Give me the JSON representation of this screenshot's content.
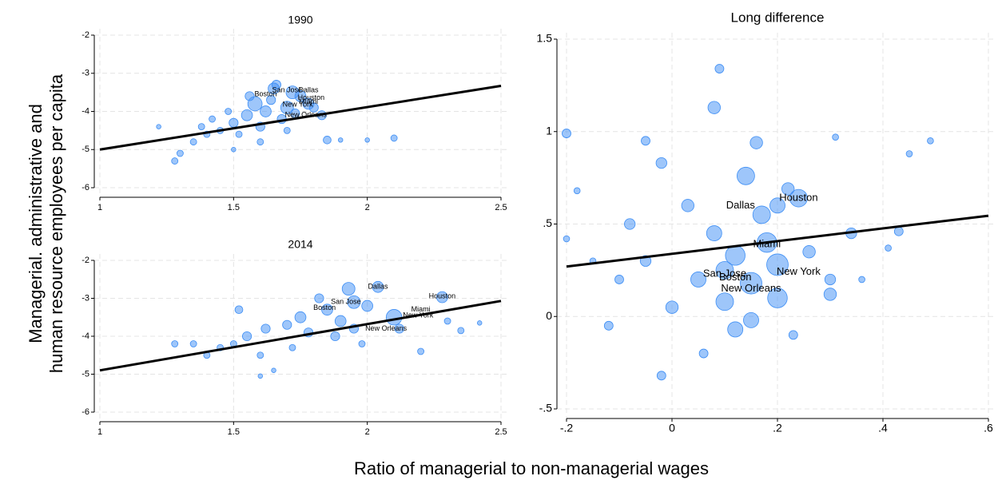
{
  "y_label": [
    "Managerial. administrative and",
    "human resource employees per capita"
  ],
  "x_label": "Ratio of managerial to non-managerial wages",
  "chart_data": [
    {
      "type": "scatter",
      "title": "1990",
      "xlim": [
        1,
        2.5
      ],
      "ylim": [
        -6,
        -2
      ],
      "xticks": [
        1,
        1.5,
        2,
        2.5
      ],
      "yticks": [
        -2,
        -3,
        -4,
        -5,
        -6
      ],
      "grid": true,
      "series": [
        {
          "color": "#3d8ef5",
          "x": [
            1.65,
            1.58,
            1.72,
            1.75,
            1.7,
            1.62,
            1.55,
            1.5,
            1.45,
            1.4,
            1.35,
            1.3,
            1.28,
            1.48,
            1.52,
            1.6,
            1.68,
            1.8,
            1.83,
            1.85,
            1.9,
            2.0,
            2.1,
            1.42,
            1.56,
            1.64,
            1.78,
            1.73,
            1.6,
            1.38,
            1.7,
            1.5,
            1.22,
            1.66
          ],
          "values": [
            -3.4,
            -3.8,
            -3.5,
            -3.6,
            -3.9,
            -4.0,
            -4.1,
            -4.3,
            -4.5,
            -4.6,
            -4.8,
            -5.1,
            -5.3,
            -4.0,
            -4.6,
            -4.4,
            -4.2,
            -3.9,
            -4.1,
            -4.75,
            -4.75,
            -4.75,
            -4.7,
            -4.2,
            -3.6,
            -3.7,
            -3.8,
            -4.05,
            -4.8,
            -4.4,
            -4.5,
            -5.0,
            -4.4,
            -3.3
          ],
          "sizes": [
            3,
            5,
            4,
            3,
            4,
            3,
            3,
            2,
            1,
            1,
            1,
            1,
            1,
            1,
            1,
            2,
            2,
            2,
            2,
            1.5,
            0.5,
            0.5,
            1,
            1,
            2,
            2,
            3,
            2,
            1,
            1,
            1,
            0.5,
            0.5,
            2
          ]
        }
      ],
      "fit": {
        "x": [
          1,
          2.5
        ],
        "values": [
          -5,
          -3.33
        ]
      },
      "annotations": [
        {
          "text": "Boston",
          "x": 1.62,
          "y": -3.55
        },
        {
          "text": "San Jose",
          "x": 1.7,
          "y": -3.45
        },
        {
          "text": "Dallas",
          "x": 1.78,
          "y": -3.45
        },
        {
          "text": "Houston",
          "x": 1.79,
          "y": -3.65
        },
        {
          "text": "Miami",
          "x": 1.78,
          "y": -3.75
        },
        {
          "text": "New York",
          "x": 1.74,
          "y": -3.82
        },
        {
          "text": "New Orleans",
          "x": 1.77,
          "y": -4.1
        }
      ]
    },
    {
      "type": "scatter",
      "title": "2014",
      "xlim": [
        1,
        2.5
      ],
      "ylim": [
        -6,
        -2
      ],
      "xticks": [
        1,
        1.5,
        2,
        2.5
      ],
      "yticks": [
        -2,
        -3,
        -4,
        -5,
        -6
      ],
      "grid": true,
      "series": [
        {
          "color": "#3d8ef5",
          "x": [
            1.93,
            2.04,
            2.28,
            2.1,
            1.95,
            1.85,
            1.75,
            1.7,
            1.62,
            1.55,
            1.5,
            1.45,
            1.4,
            1.35,
            1.28,
            1.6,
            1.65,
            1.6,
            1.52,
            1.78,
            1.88,
            1.95,
            2.0,
            2.12,
            2.2,
            2.3,
            2.35,
            2.42,
            1.82,
            1.98,
            1.72,
            1.9
          ],
          "values": [
            -2.75,
            -2.7,
            -2.97,
            -3.5,
            -3.1,
            -3.3,
            -3.5,
            -3.7,
            -3.8,
            -4.0,
            -4.2,
            -4.3,
            -4.5,
            -4.2,
            -4.2,
            -4.5,
            -4.9,
            -5.05,
            -3.3,
            -3.9,
            -4.0,
            -3.8,
            -3.2,
            -3.8,
            -4.4,
            -3.6,
            -3.85,
            -3.65,
            -3.0,
            -4.2,
            -4.3,
            -3.6
          ],
          "sizes": [
            4,
            3,
            3,
            6,
            4,
            3,
            3,
            2,
            2,
            2,
            1,
            1,
            1,
            1,
            1,
            1,
            0.5,
            0.5,
            1.5,
            2,
            2,
            2,
            3,
            2,
            1,
            1,
            1,
            0.5,
            2,
            1,
            1,
            3
          ]
        }
      ],
      "fit": {
        "x": [
          1,
          2.5
        ],
        "values": [
          -4.9,
          -3.07
        ]
      },
      "annotations": [
        {
          "text": "Dallas",
          "x": 2.04,
          "y": -2.7
        },
        {
          "text": "Houston",
          "x": 2.28,
          "y": -2.95
        },
        {
          "text": "San Jose",
          "x": 1.92,
          "y": -3.1
        },
        {
          "text": "Boston",
          "x": 1.84,
          "y": -3.25
        },
        {
          "text": "Miami",
          "x": 2.2,
          "y": -3.3
        },
        {
          "text": "New York",
          "x": 2.19,
          "y": -3.45
        },
        {
          "text": "New Orleans",
          "x": 2.07,
          "y": -3.8
        }
      ]
    },
    {
      "type": "scatter",
      "title": "Long difference",
      "xlim": [
        -0.2,
        0.6
      ],
      "ylim": [
        -0.5,
        1.5
      ],
      "xticks": [
        {
          "value": -0.2,
          "label": "-.2"
        },
        0,
        {
          "value": 0.2,
          "label": ".2"
        },
        {
          "value": 0.4,
          "label": ".4"
        },
        {
          "value": 0.6,
          "label": ".6"
        }
      ],
      "yticks": [
        {
          "value": -0.5,
          "label": "-.5"
        },
        0,
        {
          "value": 0.5,
          "label": ".5"
        },
        1,
        1.5
      ],
      "grid": true,
      "series": [
        {
          "color": "#3d8ef5",
          "x": [
            -0.2,
            -0.2,
            -0.18,
            -0.05,
            -0.02,
            0.08,
            0.14,
            0.16,
            0.2,
            0.24,
            0.22,
            0.12,
            0.18,
            0.2,
            0.15,
            0.1,
            0.2,
            0.1,
            0.15,
            0.12,
            0.05,
            0.3,
            0.34,
            0.3,
            0.0,
            -0.05,
            -0.1,
            -0.12,
            -0.02,
            0.09,
            0.43,
            0.49,
            0.45,
            0.31,
            0.06,
            0.23,
            -0.08,
            0.03,
            0.26,
            0.17,
            0.08,
            -0.15,
            0.36,
            0.41
          ],
          "values": [
            0.99,
            0.42,
            0.68,
            0.95,
            0.83,
            1.13,
            0.76,
            0.94,
            0.6,
            0.64,
            0.69,
            0.33,
            0.4,
            0.28,
            0.18,
            0.25,
            0.1,
            0.08,
            -0.02,
            -0.07,
            0.2,
            0.12,
            0.45,
            0.2,
            0.05,
            0.3,
            0.2,
            -0.05,
            -0.32,
            1.34,
            0.46,
            0.95,
            0.88,
            0.97,
            -0.2,
            -0.1,
            0.5,
            0.6,
            0.35,
            0.55,
            0.45,
            0.3,
            0.2,
            0.37
          ],
          "sizes": [
            1,
            0.5,
            0.5,
            1,
            1.5,
            2,
            4,
            2,
            3,
            4,
            2,
            5,
            5,
            6,
            6,
            4,
            5,
            4,
            3,
            3,
            3,
            2,
            1.5,
            1.5,
            2,
            1.5,
            1,
            1,
            1,
            1,
            1,
            0.5,
            0.5,
            0.5,
            1,
            1,
            1.5,
            2,
            2,
            4,
            3,
            0.5,
            0.5,
            0.5
          ]
        }
      ],
      "fit": {
        "x": [
          -0.2,
          0.6
        ],
        "values": [
          0.27,
          0.545
        ]
      },
      "annotations": [
        {
          "text": "Houston",
          "x": 0.24,
          "y": 0.64
        },
        {
          "text": "Dallas",
          "x": 0.13,
          "y": 0.6
        },
        {
          "text": "Miami",
          "x": 0.18,
          "y": 0.39
        },
        {
          "text": "New York",
          "x": 0.24,
          "y": 0.24
        },
        {
          "text": "San Jose",
          "x": 0.1,
          "y": 0.23
        },
        {
          "text": "Boston",
          "x": 0.12,
          "y": 0.21
        },
        {
          "text": "New Orleans",
          "x": 0.15,
          "y": 0.15
        }
      ]
    }
  ]
}
